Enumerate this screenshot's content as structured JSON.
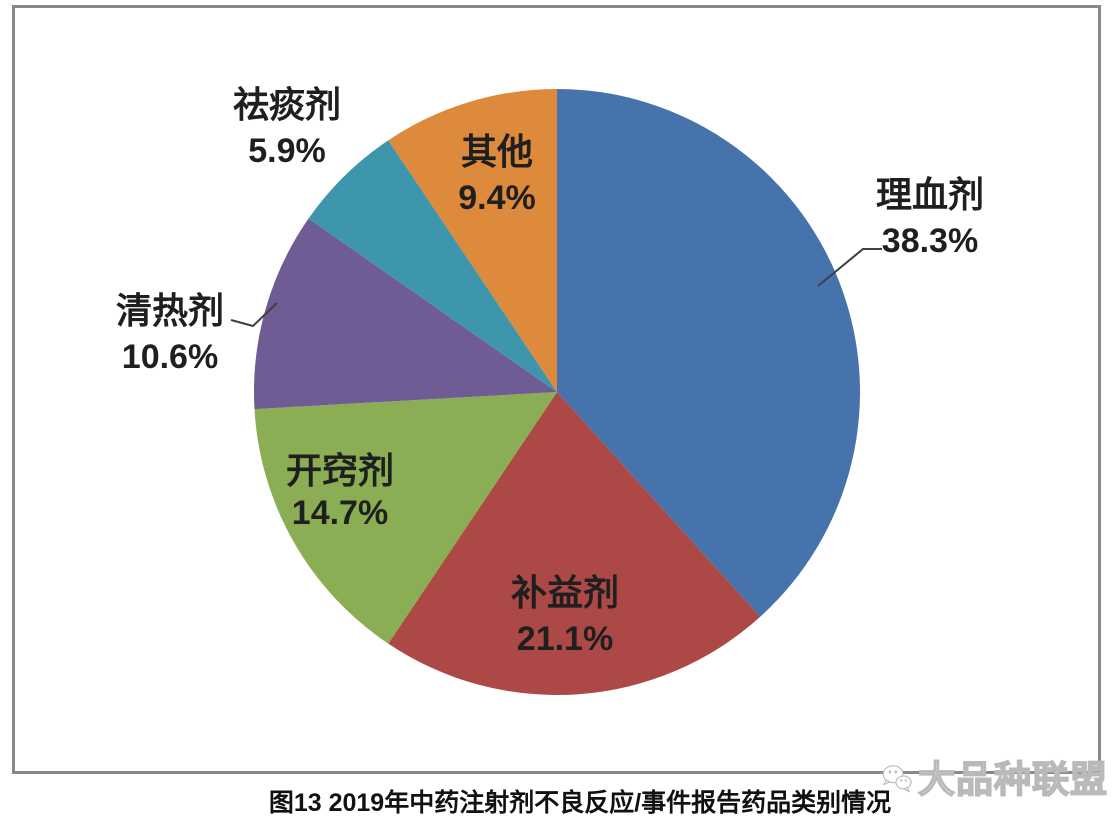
{
  "caption": "图13 2019年中药注射剂不良反应/事件报告药品类别情况",
  "watermark": {
    "icon": "wechat-icon",
    "text": "大品种联盟",
    "color": "#bdbdbd"
  },
  "chart_data": {
    "type": "pie",
    "title": "图13 2019年中药注射剂不良反应/事件报告药品类别情况",
    "unit": "%",
    "start_angle_deg": 0,
    "direction": "clockwise",
    "legend": "none",
    "slices": [
      {
        "label": "理血剂",
        "value": 38.3,
        "display": "38.3%",
        "color": "#4673AC",
        "label_placement": "outside-right",
        "leader_line": true
      },
      {
        "label": "补益剂",
        "value": 21.1,
        "display": "21.1%",
        "color": "#AC4845",
        "label_placement": "inside",
        "leader_line": false
      },
      {
        "label": "开窍剂",
        "value": 14.7,
        "display": "14.7%",
        "color": "#8BAD54",
        "label_placement": "inside",
        "leader_line": false
      },
      {
        "label": "清热剂",
        "value": 10.6,
        "display": "10.6%",
        "color": "#705C95",
        "label_placement": "outside-left",
        "leader_line": true
      },
      {
        "label": "祛痰剂",
        "value": 5.9,
        "display": "5.9%",
        "color": "#3E96AC",
        "label_placement": "outside-top-left",
        "leader_line": false
      },
      {
        "label": "其他",
        "value": 9.4,
        "display": "9.4%",
        "color": "#DD8A3C",
        "label_placement": "inside-top",
        "leader_line": false
      }
    ]
  }
}
